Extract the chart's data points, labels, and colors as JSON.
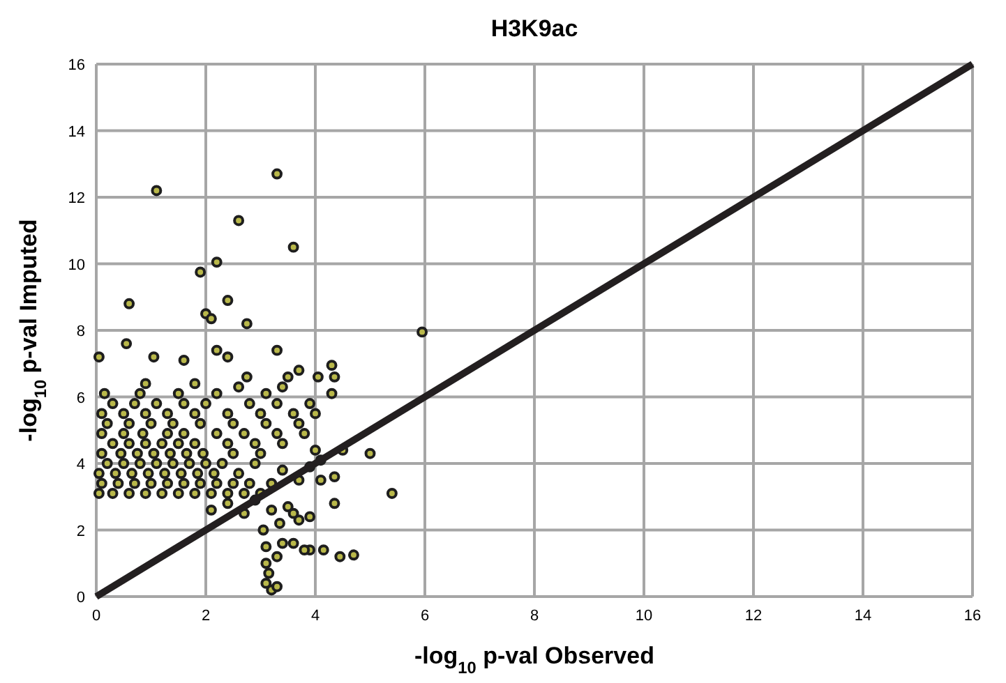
{
  "chart_data": {
    "type": "scatter",
    "title": "H3K9ac",
    "xlabel": "-log$_{10}$ p-val Observed",
    "ylabel": "-log$_{10}$ p-val Imputed",
    "xlim": [
      0,
      16
    ],
    "ylim": [
      0,
      16
    ],
    "xticks": [
      0,
      2,
      4,
      6,
      8,
      10,
      12,
      14,
      16
    ],
    "yticks": [
      0,
      2,
      4,
      6,
      8,
      10,
      12,
      14,
      16
    ],
    "grid": true,
    "series": [
      {
        "color": "#1e1e1e",
        "marker": "circle",
        "x": [
          1.1,
          3.3,
          2.6,
          3.6,
          2.2,
          1.9,
          2.4,
          0.6,
          2.0,
          2.1,
          2.75,
          5.95,
          0.05,
          0.55,
          1.05,
          1.6,
          2.2,
          2.4,
          3.3,
          4.3,
          3.7,
          4.05,
          1.8,
          0.9,
          2.6,
          3.5,
          4.35,
          3.4,
          2.75,
          5.0,
          5.4,
          4.7,
          4.45,
          4.15,
          3.9,
          4.35,
          4.1,
          3.9,
          4.35,
          4.0,
          3.05,
          3.1,
          3.1,
          3.15,
          3.1,
          3.2,
          3.3,
          3.3,
          3.4,
          3.6,
          3.8,
          3.35,
          3.5,
          3.6,
          3.7,
          3.2,
          0.05,
          0.3,
          0.6,
          0.9,
          1.2,
          1.5,
          1.8,
          2.1,
          2.4,
          2.7,
          3.0,
          0.1,
          0.4,
          0.7,
          1.0,
          1.3,
          1.6,
          1.9,
          2.2,
          2.5,
          2.8,
          3.2,
          0.05,
          0.35,
          0.65,
          0.95,
          1.25,
          1.55,
          1.85,
          2.15,
          2.6,
          0.2,
          0.5,
          0.8,
          1.1,
          1.4,
          1.7,
          2.0,
          2.3,
          2.9,
          0.1,
          0.45,
          0.75,
          1.05,
          1.35,
          1.65,
          1.95,
          2.5,
          3.0,
          0.3,
          0.6,
          0.9,
          1.2,
          1.5,
          1.8,
          2.4,
          2.9,
          3.4,
          0.1,
          0.5,
          0.85,
          1.3,
          1.6,
          2.2,
          2.7,
          3.3,
          3.8,
          0.2,
          0.6,
          1.0,
          1.4,
          1.9,
          2.5,
          3.1,
          3.7,
          0.1,
          0.5,
          0.9,
          1.3,
          1.8,
          2.4,
          3.0,
          3.6,
          4.0,
          0.3,
          0.7,
          1.1,
          1.6,
          2.0,
          2.8,
          3.3,
          3.9,
          0.15,
          0.8,
          1.5,
          2.2,
          3.1,
          4.3,
          2.1,
          2.4,
          2.7,
          2.9,
          3.4,
          3.7,
          3.9,
          4.1,
          4.5
        ],
        "values": [
          12.2,
          12.7,
          11.3,
          10.5,
          10.05,
          9.75,
          8.9,
          8.8,
          8.5,
          8.35,
          8.2,
          7.95,
          7.2,
          7.6,
          7.2,
          7.1,
          7.4,
          7.2,
          7.4,
          6.95,
          6.8,
          6.6,
          6.4,
          6.4,
          6.3,
          6.6,
          6.6,
          6.3,
          6.6,
          4.3,
          3.1,
          1.25,
          1.2,
          1.4,
          1.4,
          2.8,
          3.5,
          2.4,
          3.6,
          4.4,
          2.0,
          1.5,
          1.0,
          0.7,
          0.4,
          0.2,
          0.3,
          1.2,
          1.6,
          1.6,
          1.4,
          2.2,
          2.7,
          2.5,
          2.3,
          2.6,
          3.1,
          3.1,
          3.1,
          3.1,
          3.1,
          3.1,
          3.1,
          3.1,
          3.1,
          3.1,
          3.1,
          3.4,
          3.4,
          3.4,
          3.4,
          3.4,
          3.4,
          3.4,
          3.4,
          3.4,
          3.4,
          3.4,
          3.7,
          3.7,
          3.7,
          3.7,
          3.7,
          3.7,
          3.7,
          3.7,
          3.7,
          4.0,
          4.0,
          4.0,
          4.0,
          4.0,
          4.0,
          4.0,
          4.0,
          4.0,
          4.3,
          4.3,
          4.3,
          4.3,
          4.3,
          4.3,
          4.3,
          4.3,
          4.3,
          4.6,
          4.6,
          4.6,
          4.6,
          4.6,
          4.6,
          4.6,
          4.6,
          4.6,
          4.9,
          4.9,
          4.9,
          4.9,
          4.9,
          4.9,
          4.9,
          4.9,
          4.9,
          5.2,
          5.2,
          5.2,
          5.2,
          5.2,
          5.2,
          5.2,
          5.2,
          5.5,
          5.5,
          5.5,
          5.5,
          5.5,
          5.5,
          5.5,
          5.5,
          5.5,
          5.8,
          5.8,
          5.8,
          5.8,
          5.8,
          5.8,
          5.8,
          5.8,
          6.1,
          6.1,
          6.1,
          6.1,
          6.1,
          6.1,
          2.6,
          2.8,
          2.5,
          2.9,
          3.8,
          3.5,
          3.9,
          4.1,
          4.4
        ]
      },
      {
        "type": "line",
        "color": "#231f20",
        "x": [
          0,
          16
        ],
        "values": [
          0,
          16
        ],
        "marker": "none"
      }
    ]
  }
}
